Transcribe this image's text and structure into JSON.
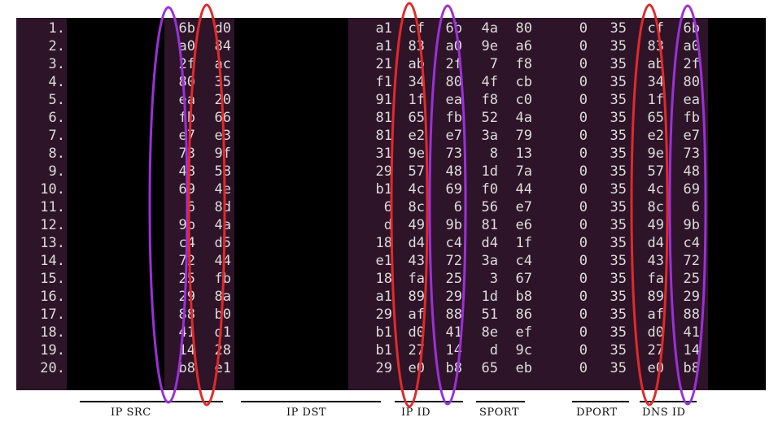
{
  "rows": [
    {
      "n": "1.",
      "ip_src": [
        "6b",
        "d0"
      ],
      "ip_dst": "a1",
      "ip_id": [
        "cf",
        "6b"
      ],
      "sport": [
        "4a",
        "80"
      ],
      "dport": [
        "0",
        "35"
      ],
      "dns_id": [
        "cf",
        "6b"
      ]
    },
    {
      "n": "2.",
      "ip_src": [
        "a0",
        "84"
      ],
      "ip_dst": "a1",
      "ip_id": [
        "83",
        "a0"
      ],
      "sport": [
        "9e",
        "a6"
      ],
      "dport": [
        "0",
        "35"
      ],
      "dns_id": [
        "83",
        "a0"
      ]
    },
    {
      "n": "3.",
      "ip_src": [
        "2f",
        "ac"
      ],
      "ip_dst": "21",
      "ip_id": [
        "ab",
        "2f"
      ],
      "sport": [
        "7",
        "f8"
      ],
      "dport": [
        "0",
        "35"
      ],
      "dns_id": [
        "ab",
        "2f"
      ]
    },
    {
      "n": "4.",
      "ip_src": [
        "80",
        "35"
      ],
      "ip_dst": "f1",
      "ip_id": [
        "34",
        "80"
      ],
      "sport": [
        "4f",
        "cb"
      ],
      "dport": [
        "0",
        "35"
      ],
      "dns_id": [
        "34",
        "80"
      ]
    },
    {
      "n": "5.",
      "ip_src": [
        "ea",
        "20"
      ],
      "ip_dst": "91",
      "ip_id": [
        "1f",
        "ea"
      ],
      "sport": [
        "f8",
        "c0"
      ],
      "dport": [
        "0",
        "35"
      ],
      "dns_id": [
        "1f",
        "ea"
      ]
    },
    {
      "n": "6.",
      "ip_src": [
        "fb",
        "66"
      ],
      "ip_dst": "81",
      "ip_id": [
        "65",
        "fb"
      ],
      "sport": [
        "52",
        "4a"
      ],
      "dport": [
        "0",
        "35"
      ],
      "dns_id": [
        "65",
        "fb"
      ]
    },
    {
      "n": "7.",
      "ip_src": [
        "e7",
        "e3"
      ],
      "ip_dst": "81",
      "ip_id": [
        "e2",
        "e7"
      ],
      "sport": [
        "3a",
        "79"
      ],
      "dport": [
        "0",
        "35"
      ],
      "dns_id": [
        "e2",
        "e7"
      ]
    },
    {
      "n": "8.",
      "ip_src": [
        "73",
        "9f"
      ],
      "ip_dst": "31",
      "ip_id": [
        "9e",
        "73"
      ],
      "sport": [
        "8",
        "13"
      ],
      "dport": [
        "0",
        "35"
      ],
      "dns_id": [
        "9e",
        "73"
      ]
    },
    {
      "n": "9.",
      "ip_src": [
        "48",
        "58"
      ],
      "ip_dst": "29",
      "ip_id": [
        "57",
        "48"
      ],
      "sport": [
        "1d",
        "7a"
      ],
      "dport": [
        "0",
        "35"
      ],
      "dns_id": [
        "57",
        "48"
      ]
    },
    {
      "n": "10.",
      "ip_src": [
        "69",
        "4e"
      ],
      "ip_dst": "b1",
      "ip_id": [
        "4c",
        "69"
      ],
      "sport": [
        "f0",
        "44"
      ],
      "dport": [
        "0",
        "35"
      ],
      "dns_id": [
        "4c",
        "69"
      ]
    },
    {
      "n": "11.",
      "ip_src": [
        "6",
        "8d"
      ],
      "ip_dst": "6",
      "ip_id": [
        "8c",
        "6"
      ],
      "sport": [
        "56",
        "e7"
      ],
      "dport": [
        "0",
        "35"
      ],
      "dns_id": [
        "8c",
        "6"
      ]
    },
    {
      "n": "12.",
      "ip_src": [
        "9b",
        "4a"
      ],
      "ip_dst": "d",
      "ip_id": [
        "49",
        "9b"
      ],
      "sport": [
        "81",
        "e6"
      ],
      "dport": [
        "0",
        "35"
      ],
      "dns_id": [
        "49",
        "9b"
      ]
    },
    {
      "n": "13.",
      "ip_src": [
        "c4",
        "d5"
      ],
      "ip_dst": "18",
      "ip_id": [
        "d4",
        "c4"
      ],
      "sport": [
        "d4",
        "1f"
      ],
      "dport": [
        "0",
        "35"
      ],
      "dns_id": [
        "d4",
        "c4"
      ]
    },
    {
      "n": "14.",
      "ip_src": [
        "72",
        "44"
      ],
      "ip_dst": "e1",
      "ip_id": [
        "43",
        "72"
      ],
      "sport": [
        "3a",
        "c4"
      ],
      "dport": [
        "0",
        "35"
      ],
      "dns_id": [
        "43",
        "72"
      ]
    },
    {
      "n": "15.",
      "ip_src": [
        "25",
        "fb"
      ],
      "ip_dst": "18",
      "ip_id": [
        "fa",
        "25"
      ],
      "sport": [
        "3",
        "67"
      ],
      "dport": [
        "0",
        "35"
      ],
      "dns_id": [
        "fa",
        "25"
      ]
    },
    {
      "n": "16.",
      "ip_src": [
        "29",
        "8a"
      ],
      "ip_dst": "a1",
      "ip_id": [
        "89",
        "29"
      ],
      "sport": [
        "1d",
        "b8"
      ],
      "dport": [
        "0",
        "35"
      ],
      "dns_id": [
        "89",
        "29"
      ]
    },
    {
      "n": "17.",
      "ip_src": [
        "88",
        "b0"
      ],
      "ip_dst": "29",
      "ip_id": [
        "af",
        "88"
      ],
      "sport": [
        "51",
        "86"
      ],
      "dport": [
        "0",
        "35"
      ],
      "dns_id": [
        "af",
        "88"
      ]
    },
    {
      "n": "18.",
      "ip_src": [
        "41",
        "d1"
      ],
      "ip_dst": "b1",
      "ip_id": [
        "d0",
        "41"
      ],
      "sport": [
        "8e",
        "ef"
      ],
      "dport": [
        "0",
        "35"
      ],
      "dns_id": [
        "d0",
        "41"
      ]
    },
    {
      "n": "19.",
      "ip_src": [
        "14",
        "28"
      ],
      "ip_dst": "b1",
      "ip_id": [
        "27",
        "14"
      ],
      "sport": [
        "d",
        "9c"
      ],
      "dport": [
        "0",
        "35"
      ],
      "dns_id": [
        "27",
        "14"
      ]
    },
    {
      "n": "20.",
      "ip_src": [
        "b8",
        "e1"
      ],
      "ip_dst": "29",
      "ip_id": [
        "e0",
        "b8"
      ],
      "sport": [
        "65",
        "eb"
      ],
      "dport": [
        "0",
        "35"
      ],
      "dns_id": [
        "e0",
        "b8"
      ]
    }
  ],
  "labels": {
    "ip_src": "IP SRC",
    "ip_dst": "IP DST",
    "ip_id": "IP ID",
    "sport": "SPORT",
    "dport": "DPORT",
    "dns_id": "DNS ID"
  },
  "colors": {
    "red_oval": "#e02a2a",
    "purple_oval": "#9b30d9",
    "terminal_bg": "#2e1428",
    "redacted_block": "#000000",
    "text": "#dcdcdc"
  }
}
